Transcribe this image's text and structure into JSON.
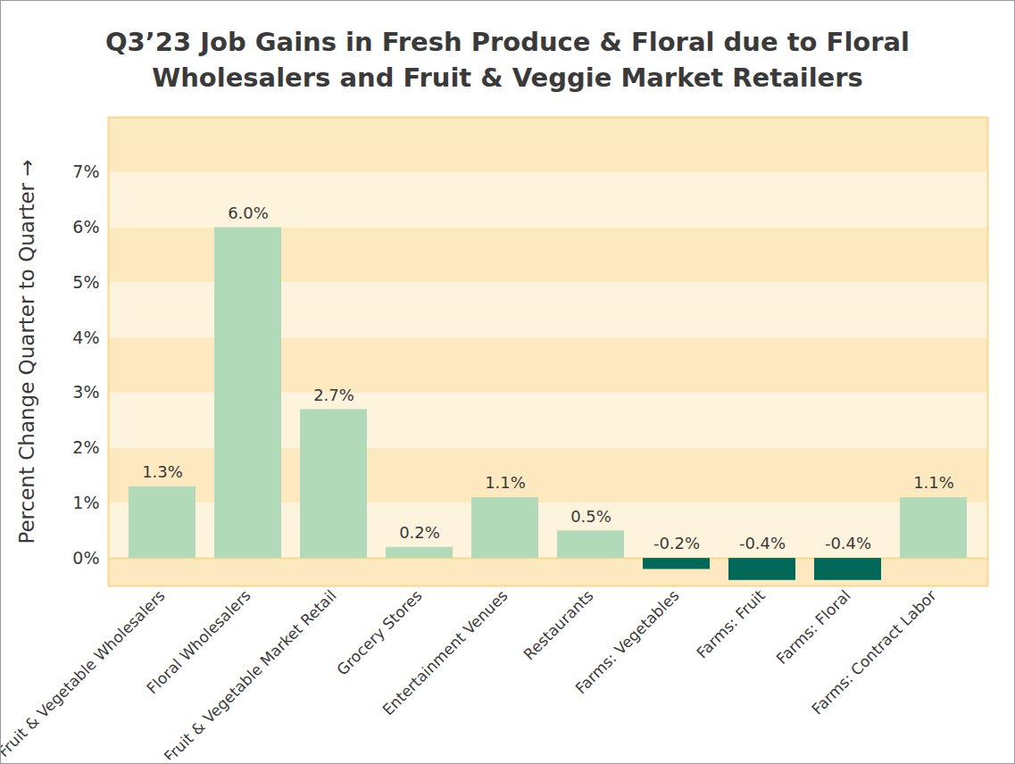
{
  "chart_data": {
    "type": "bar",
    "title": "Q3’23 Job Gains in Fresh Produce & Floral due to Floral Wholesalers and Fruit & Veggie Market Retailers",
    "ylabel": "Percent Change Quarter to Quarter",
    "categories": [
      "Fruit & Vegetable Wholesalers",
      "Floral Wholesalers",
      "Fruit & Vegetable Market Retail",
      "Grocery Stores",
      "Entertainment Venues",
      "Restaurants",
      "Farms: Vegetables",
      "Farms: Fruit",
      "Farms: Floral",
      "Farms: Contract Labor"
    ],
    "values": [
      1.3,
      6.0,
      2.7,
      0.2,
      1.1,
      0.5,
      -0.2,
      -0.4,
      -0.4,
      1.1
    ],
    "value_labels": [
      "1.3%",
      "6.0%",
      "2.7%",
      "0.2%",
      "1.1%",
      "0.5%",
      "-0.2%",
      "-0.4%",
      "-0.4%",
      "1.1%"
    ],
    "colors": [
      "#b1dbb8",
      "#b1dbb8",
      "#b1dbb8",
      "#b1dbb8",
      "#b1dbb8",
      "#b1dbb8",
      "#00695a",
      "#00695a",
      "#00695a",
      "#b1dbb8"
    ],
    "ylim": [
      -0.5,
      8
    ],
    "yticks": [
      {
        "value": 0,
        "label": "0%"
      },
      {
        "value": 1,
        "label": "1%"
      },
      {
        "value": 2,
        "label": "2%"
      },
      {
        "value": 3,
        "label": "3%"
      },
      {
        "value": 4,
        "label": "4%"
      },
      {
        "value": 5,
        "label": "5%"
      },
      {
        "value": 6,
        "label": "6%"
      },
      {
        "value": 7,
        "label": "7%"
      }
    ],
    "grid": true,
    "data_labels": true
  }
}
